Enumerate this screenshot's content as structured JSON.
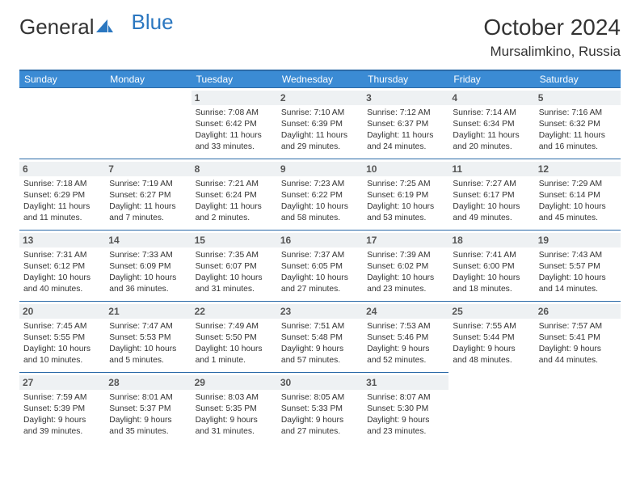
{
  "brand": {
    "part1": "General",
    "part2": "Blue"
  },
  "title": "October 2024",
  "location": "Mursalimkino, Russia",
  "colors": {
    "header_bg": "#3b8bd4",
    "header_border": "#2b6aa8",
    "daynum_bg": "#eef1f3",
    "text": "#333333"
  },
  "weekdays": [
    "Sunday",
    "Monday",
    "Tuesday",
    "Wednesday",
    "Thursday",
    "Friday",
    "Saturday"
  ],
  "weeks": [
    [
      null,
      null,
      {
        "n": "1",
        "sr": "7:08 AM",
        "ss": "6:42 PM",
        "dl": "11 hours and 33 minutes."
      },
      {
        "n": "2",
        "sr": "7:10 AM",
        "ss": "6:39 PM",
        "dl": "11 hours and 29 minutes."
      },
      {
        "n": "3",
        "sr": "7:12 AM",
        "ss": "6:37 PM",
        "dl": "11 hours and 24 minutes."
      },
      {
        "n": "4",
        "sr": "7:14 AM",
        "ss": "6:34 PM",
        "dl": "11 hours and 20 minutes."
      },
      {
        "n": "5",
        "sr": "7:16 AM",
        "ss": "6:32 PM",
        "dl": "11 hours and 16 minutes."
      }
    ],
    [
      {
        "n": "6",
        "sr": "7:18 AM",
        "ss": "6:29 PM",
        "dl": "11 hours and 11 minutes."
      },
      {
        "n": "7",
        "sr": "7:19 AM",
        "ss": "6:27 PM",
        "dl": "11 hours and 7 minutes."
      },
      {
        "n": "8",
        "sr": "7:21 AM",
        "ss": "6:24 PM",
        "dl": "11 hours and 2 minutes."
      },
      {
        "n": "9",
        "sr": "7:23 AM",
        "ss": "6:22 PM",
        "dl": "10 hours and 58 minutes."
      },
      {
        "n": "10",
        "sr": "7:25 AM",
        "ss": "6:19 PM",
        "dl": "10 hours and 53 minutes."
      },
      {
        "n": "11",
        "sr": "7:27 AM",
        "ss": "6:17 PM",
        "dl": "10 hours and 49 minutes."
      },
      {
        "n": "12",
        "sr": "7:29 AM",
        "ss": "6:14 PM",
        "dl": "10 hours and 45 minutes."
      }
    ],
    [
      {
        "n": "13",
        "sr": "7:31 AM",
        "ss": "6:12 PM",
        "dl": "10 hours and 40 minutes."
      },
      {
        "n": "14",
        "sr": "7:33 AM",
        "ss": "6:09 PM",
        "dl": "10 hours and 36 minutes."
      },
      {
        "n": "15",
        "sr": "7:35 AM",
        "ss": "6:07 PM",
        "dl": "10 hours and 31 minutes."
      },
      {
        "n": "16",
        "sr": "7:37 AM",
        "ss": "6:05 PM",
        "dl": "10 hours and 27 minutes."
      },
      {
        "n": "17",
        "sr": "7:39 AM",
        "ss": "6:02 PM",
        "dl": "10 hours and 23 minutes."
      },
      {
        "n": "18",
        "sr": "7:41 AM",
        "ss": "6:00 PM",
        "dl": "10 hours and 18 minutes."
      },
      {
        "n": "19",
        "sr": "7:43 AM",
        "ss": "5:57 PM",
        "dl": "10 hours and 14 minutes."
      }
    ],
    [
      {
        "n": "20",
        "sr": "7:45 AM",
        "ss": "5:55 PM",
        "dl": "10 hours and 10 minutes."
      },
      {
        "n": "21",
        "sr": "7:47 AM",
        "ss": "5:53 PM",
        "dl": "10 hours and 5 minutes."
      },
      {
        "n": "22",
        "sr": "7:49 AM",
        "ss": "5:50 PM",
        "dl": "10 hours and 1 minute."
      },
      {
        "n": "23",
        "sr": "7:51 AM",
        "ss": "5:48 PM",
        "dl": "9 hours and 57 minutes."
      },
      {
        "n": "24",
        "sr": "7:53 AM",
        "ss": "5:46 PM",
        "dl": "9 hours and 52 minutes."
      },
      {
        "n": "25",
        "sr": "7:55 AM",
        "ss": "5:44 PM",
        "dl": "9 hours and 48 minutes."
      },
      {
        "n": "26",
        "sr": "7:57 AM",
        "ss": "5:41 PM",
        "dl": "9 hours and 44 minutes."
      }
    ],
    [
      {
        "n": "27",
        "sr": "7:59 AM",
        "ss": "5:39 PM",
        "dl": "9 hours and 39 minutes."
      },
      {
        "n": "28",
        "sr": "8:01 AM",
        "ss": "5:37 PM",
        "dl": "9 hours and 35 minutes."
      },
      {
        "n": "29",
        "sr": "8:03 AM",
        "ss": "5:35 PM",
        "dl": "9 hours and 31 minutes."
      },
      {
        "n": "30",
        "sr": "8:05 AM",
        "ss": "5:33 PM",
        "dl": "9 hours and 27 minutes."
      },
      {
        "n": "31",
        "sr": "8:07 AM",
        "ss": "5:30 PM",
        "dl": "9 hours and 23 minutes."
      },
      null,
      null
    ]
  ]
}
